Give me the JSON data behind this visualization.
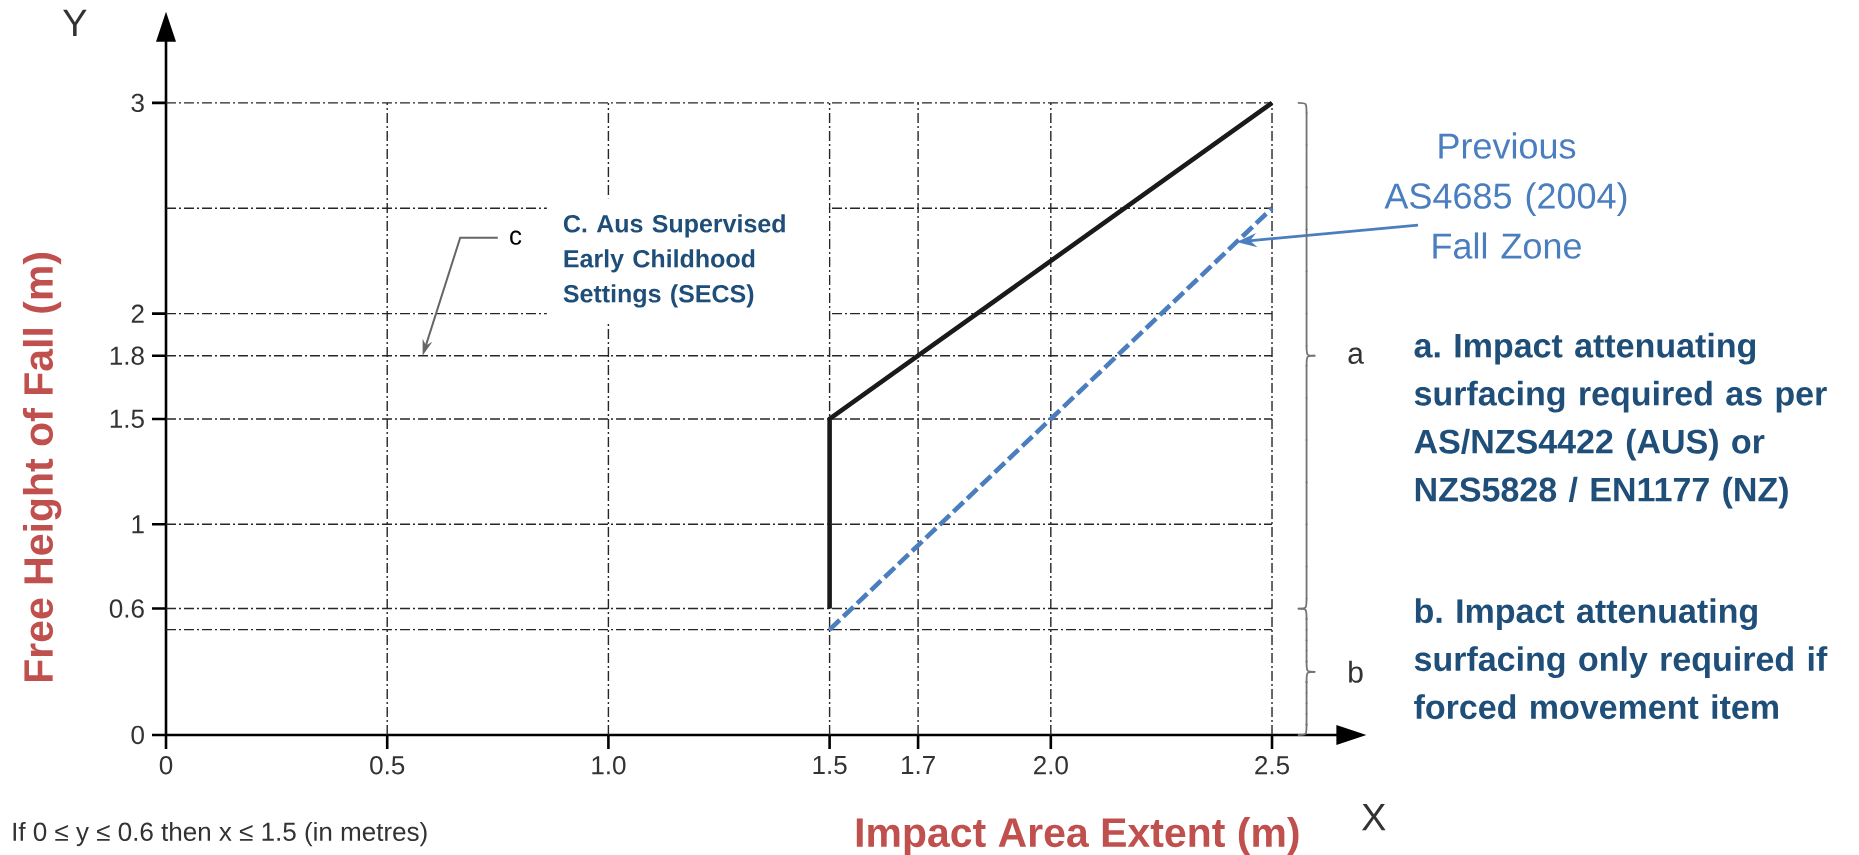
{
  "chart_data": {
    "type": "line",
    "xlabel": "Impact Area Extent (m)",
    "ylabel": "Free Height of Fall  (m)",
    "xlim": [
      0,
      2.65
    ],
    "ylim": [
      0,
      3.3
    ],
    "xticks": [
      0,
      0.5,
      {
        "value": 1,
        "label": "1.0"
      },
      1.5,
      1.7,
      {
        "value": 2,
        "label": "2.0"
      },
      2.5
    ],
    "yticks": [
      0,
      0.6,
      1,
      1.5,
      1.8,
      2,
      3
    ],
    "grid": true,
    "series": [
      {
        "color": "#1a1a1a",
        "x": [
          1.5,
          1.5,
          1.7,
          2.5
        ],
        "values": [
          0.6,
          1.5,
          1.8,
          3
        ],
        "line_style": "solid"
      },
      {
        "color": "#4a7ebf",
        "x": [
          1.5,
          2.5
        ],
        "values": [
          0.5,
          2.5
        ],
        "line_style": "dashed"
      }
    ],
    "ref_lines": [
      {
        "axis": "y",
        "value": 0.5
      },
      {
        "axis": "y",
        "value": 2.5
      }
    ],
    "annotations": [
      "Y",
      "X",
      "c",
      "C. Aus Supervised Early Childhood Settings (SECS)",
      "Previous AS4685 (2004) Fall Zone",
      "a. Impact attenuating surfacing required as per AS/NZS4422 (AUS) or NZS5828 / EN1177 (NZ)",
      "b. Impact attenuating surfacing only required if forced movement item",
      "If 0 ≤ y ≤ 0.6 then x ≤ 1.5 (in metres)",
      "a",
      "b"
    ]
  }
}
